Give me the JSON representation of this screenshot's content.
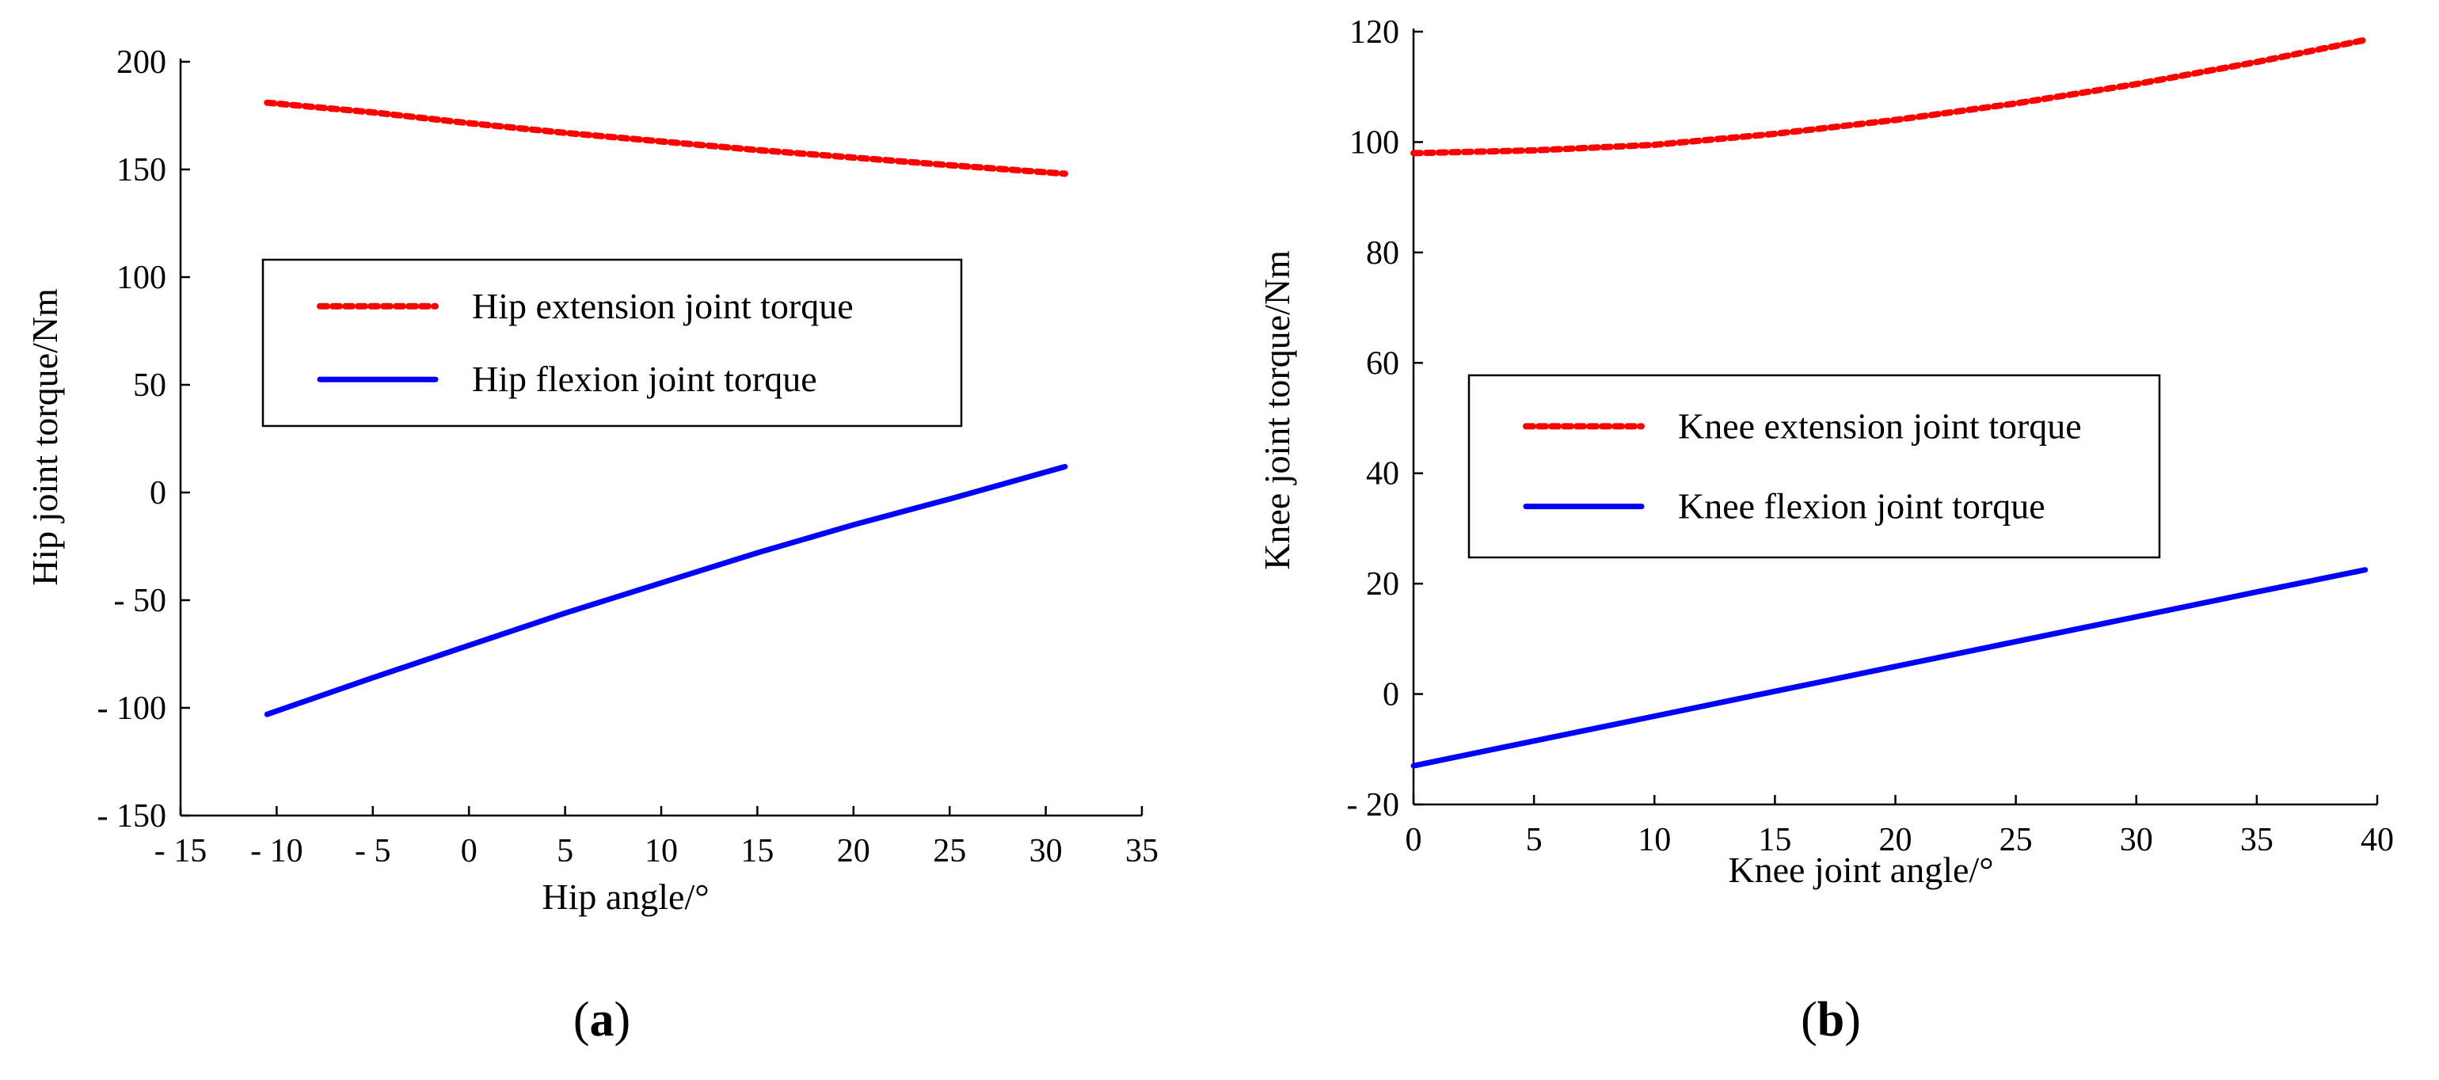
{
  "chart_data": [
    {
      "type": "line",
      "panel_label": "(a)",
      "xlabel": "Hip angle/°",
      "ylabel": "Hip joint torque/Nm",
      "xlim": [
        -15,
        35
      ],
      "ylim": [
        -150,
        200
      ],
      "xticks": [
        -15,
        -10,
        -5,
        0,
        5,
        10,
        15,
        20,
        25,
        30,
        35
      ],
      "yticks": [
        -150,
        -100,
        -50,
        0,
        50,
        100,
        150,
        200
      ],
      "xtick_labels": [
        "- 15",
        "- 10",
        "- 5",
        "0",
        "5",
        "10",
        "15",
        "20",
        "25",
        "30",
        "35"
      ],
      "ytick_labels": [
        "- 150",
        "- 100",
        "- 50",
        "0",
        "50",
        "100",
        "150",
        "200"
      ],
      "legend_position": "center",
      "series": [
        {
          "name": "Hip extension joint torque",
          "color": "#ff0000",
          "style": "dotted",
          "x": [
            -10.5,
            -5,
            0,
            5,
            10,
            15,
            20,
            25,
            31
          ],
          "y": [
            181,
            176.5,
            171.5,
            167,
            163,
            159,
            155.5,
            152,
            148
          ]
        },
        {
          "name": "Hip flexion joint torque",
          "color": "#0000ff",
          "style": "solid",
          "x": [
            -10.5,
            -5,
            0,
            5,
            10,
            15,
            20,
            25,
            31
          ],
          "y": [
            -103,
            -86,
            -71,
            -56,
            -42,
            -28,
            -15,
            -3,
            12
          ]
        }
      ]
    },
    {
      "type": "line",
      "panel_label": "(b)",
      "xlabel": "Knee joint angle/°",
      "ylabel": "Knee joint torque/Nm",
      "xlim": [
        0,
        40
      ],
      "ylim": [
        -20,
        120
      ],
      "xticks": [
        0,
        5,
        10,
        15,
        20,
        25,
        30,
        35,
        40
      ],
      "yticks": [
        -20,
        0,
        20,
        40,
        60,
        80,
        100,
        120
      ],
      "xtick_labels": [
        "0",
        "5",
        "10",
        "15",
        "20",
        "25",
        "30",
        "35",
        "40"
      ],
      "ytick_labels": [
        "- 20",
        "0",
        "20",
        "40",
        "60",
        "80",
        "100",
        "120"
      ],
      "legend_position": "center-left",
      "series": [
        {
          "name": "Knee extension joint torque",
          "color": "#ff0000",
          "style": "dotted",
          "x": [
            0,
            5,
            10,
            15,
            20,
            25,
            30,
            35,
            39.5
          ],
          "y": [
            98,
            98.5,
            99.5,
            101.5,
            104,
            107,
            110.5,
            114.5,
            118.5
          ]
        },
        {
          "name": "Knee flexion joint torque",
          "color": "#0000ff",
          "style": "solid",
          "x": [
            0,
            5,
            10,
            15,
            20,
            25,
            30,
            35,
            39.5
          ],
          "y": [
            -13,
            -8.5,
            -4,
            0.5,
            5,
            9.5,
            14,
            18.5,
            22.5
          ]
        }
      ]
    }
  ]
}
